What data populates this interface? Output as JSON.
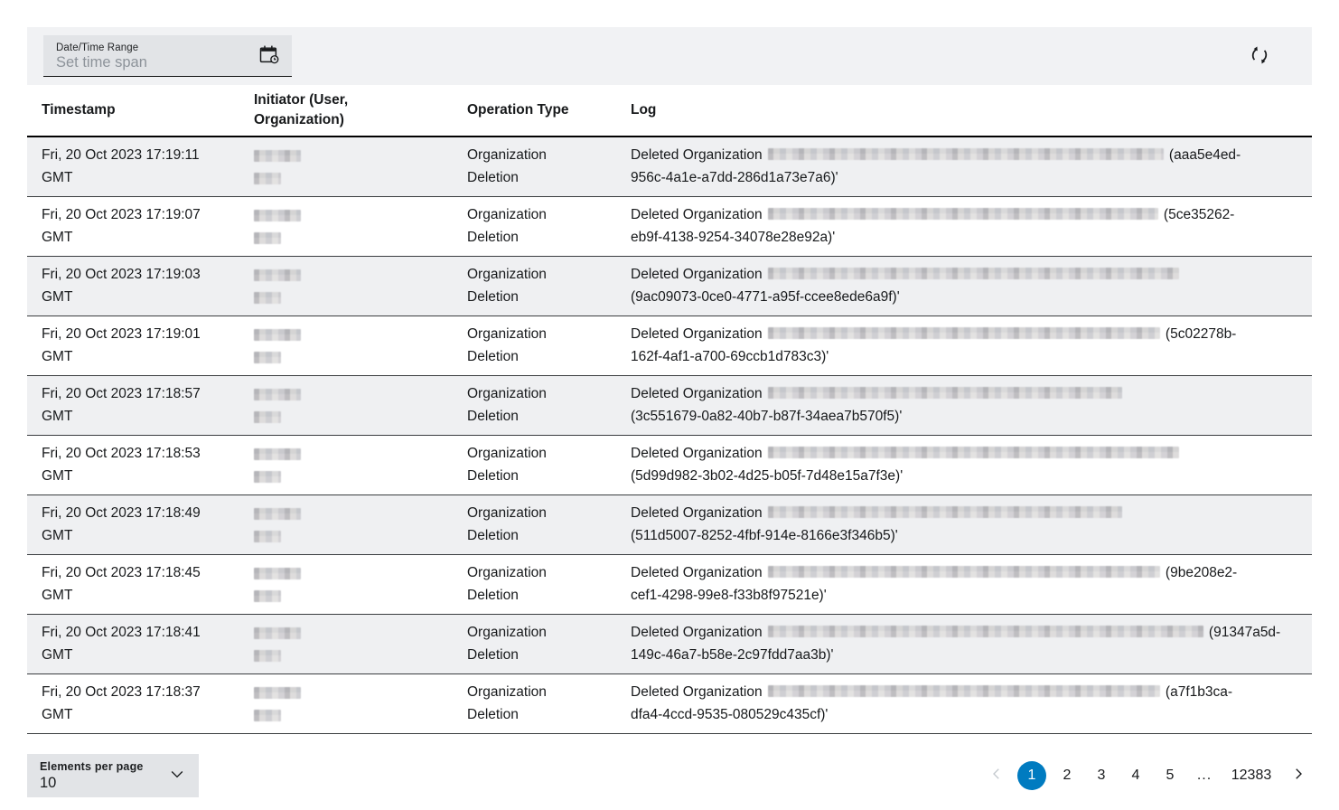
{
  "accent_color": "#007bc0",
  "filter": {
    "datetime_label": "Date/Time Range",
    "datetime_placeholder": "Set time span",
    "calendar_icon": "calendar-clock-icon",
    "refresh_icon": "refresh-icon"
  },
  "table": {
    "headers": {
      "timestamp": "Timestamp",
      "initiator": "Initiator (User, Organization)",
      "operation_type": "Operation Type",
      "log": "Log"
    },
    "rows": [
      {
        "timestamp": "Fri, 20 Oct 2023 17:19:11 GMT",
        "initiator_user_redacted": true,
        "initiator_org_redacted": true,
        "operation_type": "Organization Deletion",
        "log_prefix": "Deleted Organization",
        "log_redacted": true,
        "redact_width": 438,
        "log_line1_id": "(aaa5e4ed-",
        "log_line2_id": "956c-4a1e-a7dd-286d1a73e7a6)'"
      },
      {
        "timestamp": "Fri, 20 Oct 2023 17:19:07 GMT",
        "initiator_user_redacted": true,
        "initiator_org_redacted": true,
        "operation_type": "Organization Deletion",
        "log_prefix": "Deleted Organization",
        "log_redacted": true,
        "redact_width": 432,
        "log_line1_id": "(5ce35262-",
        "log_line2_id": "eb9f-4138-9254-34078e28e92a)'"
      },
      {
        "timestamp": "Fri, 20 Oct 2023 17:19:03 GMT",
        "initiator_user_redacted": true,
        "initiator_org_redacted": true,
        "operation_type": "Organization Deletion",
        "log_prefix": "Deleted Organization",
        "log_redacted": true,
        "redact_width": 455,
        "log_line1_id": "",
        "log_line2_id": "(9ac09073-0ce0-4771-a95f-ccee8ede6a9f)'"
      },
      {
        "timestamp": "Fri, 20 Oct 2023 17:19:01 GMT",
        "initiator_user_redacted": true,
        "initiator_org_redacted": true,
        "operation_type": "Organization Deletion",
        "log_prefix": "Deleted Organization",
        "log_redacted": true,
        "redact_width": 434,
        "log_line1_id": "(5c02278b-",
        "log_line2_id": "162f-4af1-a700-69ccb1d783c3)'"
      },
      {
        "timestamp": "Fri, 20 Oct 2023 17:18:57 GMT",
        "initiator_user_redacted": true,
        "initiator_org_redacted": true,
        "operation_type": "Organization Deletion",
        "log_prefix": "Deleted Organization",
        "log_redacted": true,
        "redact_width": 392,
        "log_line1_id": "",
        "log_line2_id": "(3c551679-0a82-40b7-b87f-34aea7b570f5)'"
      },
      {
        "timestamp": "Fri, 20 Oct 2023 17:18:53 GMT",
        "initiator_user_redacted": true,
        "initiator_org_redacted": true,
        "operation_type": "Organization Deletion",
        "log_prefix": "Deleted Organization",
        "log_redacted": true,
        "redact_width": 455,
        "log_line1_id": "",
        "log_line2_id": "(5d99d982-3b02-4d25-b05f-7d48e15a7f3e)'"
      },
      {
        "timestamp": "Fri, 20 Oct 2023 17:18:49 GMT",
        "initiator_user_redacted": true,
        "initiator_org_redacted": true,
        "operation_type": "Organization Deletion",
        "log_prefix": "Deleted Organization",
        "log_redacted": true,
        "redact_width": 392,
        "log_line1_id": "",
        "log_line2_id": "(511d5007-8252-4fbf-914e-8166e3f346b5)'"
      },
      {
        "timestamp": "Fri, 20 Oct 2023 17:18:45 GMT",
        "initiator_user_redacted": true,
        "initiator_org_redacted": true,
        "operation_type": "Organization Deletion",
        "log_prefix": "Deleted Organization",
        "log_redacted": true,
        "redact_width": 434,
        "log_line1_id": "(9be208e2-",
        "log_line2_id": "cef1-4298-99e8-f33b8f97521e)'"
      },
      {
        "timestamp": "Fri, 20 Oct 2023 17:18:41 GMT",
        "initiator_user_redacted": true,
        "initiator_org_redacted": true,
        "operation_type": "Organization Deletion",
        "log_prefix": "Deleted Organization",
        "log_redacted": true,
        "redact_width": 482,
        "log_line1_id": "(91347a5d-",
        "log_line2_id": "149c-46a7-b58e-2c97fdd7aa3b)'"
      },
      {
        "timestamp": "Fri, 20 Oct 2023 17:18:37 GMT",
        "initiator_user_redacted": true,
        "initiator_org_redacted": true,
        "operation_type": "Organization Deletion",
        "log_prefix": "Deleted Organization",
        "log_redacted": true,
        "redact_width": 434,
        "log_line1_id": "(a7f1b3ca-",
        "log_line2_id": "dfa4-4ccd-9535-080529c435cf)'"
      }
    ]
  },
  "footer": {
    "elements_per_page_label": "Elements per page",
    "elements_per_page_value": "10",
    "pagination": {
      "prev_icon": "chevron-left-icon",
      "next_icon": "chevron-right-icon",
      "pages": [
        "1",
        "2",
        "3",
        "4",
        "5",
        "...",
        "12383"
      ],
      "active_page": "1"
    }
  }
}
